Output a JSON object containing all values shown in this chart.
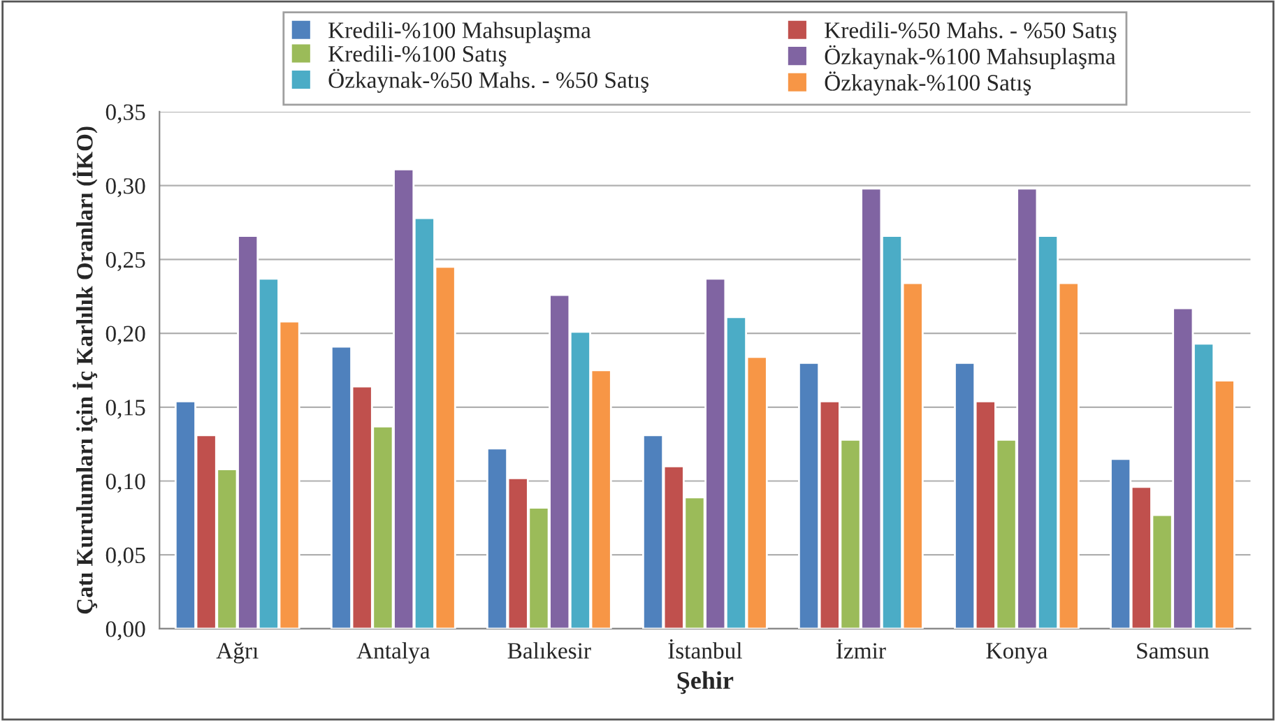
{
  "chart_data": {
    "type": "bar",
    "xlabel": "Şehir",
    "ylabel": "Çatı Kurulumları için İç Karlılık Oranları (İKO)",
    "categories": [
      "Ağrı",
      "Antalya",
      "Balıkesir",
      "İstanbul",
      "İzmir",
      "Konya",
      "Samsun"
    ],
    "series": [
      {
        "name": "Kredili-%100 Mahsuplaşma",
        "color": "#4f81bd",
        "values": [
          0.154,
          0.191,
          0.122,
          0.131,
          0.18,
          0.18,
          0.115
        ]
      },
      {
        "name": "Kredili-%50 Mahs. - %50 Satış",
        "color": "#c0504d",
        "values": [
          0.131,
          0.164,
          0.102,
          0.11,
          0.154,
          0.154,
          0.096
        ]
      },
      {
        "name": "Kredili-%100 Satış",
        "color": "#9bbb59",
        "values": [
          0.108,
          0.137,
          0.082,
          0.089,
          0.128,
          0.128,
          0.077
        ]
      },
      {
        "name": "Özkaynak-%100 Mahsuplaşma",
        "color": "#8064a2",
        "values": [
          0.266,
          0.311,
          0.226,
          0.237,
          0.298,
          0.298,
          0.217
        ]
      },
      {
        "name": "Özkaynak-%50 Mahs. - %50 Satış",
        "color": "#4bacc6",
        "values": [
          0.237,
          0.278,
          0.201,
          0.211,
          0.266,
          0.266,
          0.193
        ]
      },
      {
        "name": "Özkaynak-%100 Satış",
        "color": "#f79646",
        "values": [
          0.208,
          0.245,
          0.175,
          0.184,
          0.234,
          0.234,
          0.168
        ]
      }
    ],
    "ylim": [
      0,
      0.35
    ],
    "yticks": [
      {
        "value": 0,
        "label": "0,00"
      },
      {
        "value": 0.05,
        "label": "0,05"
      },
      {
        "value": 0.1,
        "label": "0,10"
      },
      {
        "value": 0.15,
        "label": "0,15"
      },
      {
        "value": 0.2,
        "label": "0,20"
      },
      {
        "value": 0.25,
        "label": "0,25"
      },
      {
        "value": 0.3,
        "label": "0,30"
      },
      {
        "value": 0.35,
        "label": "0,35"
      }
    ],
    "grid": "y",
    "legend": "top"
  }
}
